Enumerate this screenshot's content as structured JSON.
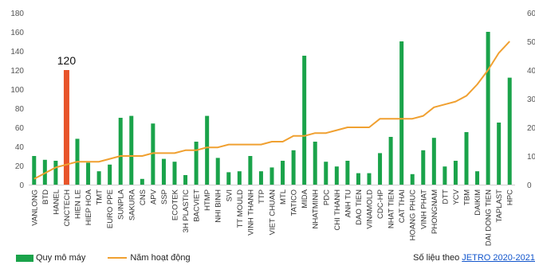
{
  "chart_data": {
    "type": "bar",
    "categories": [
      "VANLONG",
      "BTD",
      "HANEL",
      "CNCTECH",
      "HIEN LE",
      "HIEP HOA",
      "TMT",
      "EURO PPE",
      "SUNPLA",
      "SAKURA",
      "CNS",
      "APV",
      "SSP",
      "ECOTEK",
      "3H PLASTIC",
      "BACVIET",
      "HTMP",
      "NHI BINH",
      "SVI",
      "TT MOULD",
      "VINH THANH",
      "TTP",
      "VIET CHUAN",
      "MTL",
      "TATICO",
      "MIDA",
      "NHATMINH",
      "PDC",
      "CHI THANH",
      "ANH TU",
      "DAO TIEN",
      "VINAMOLD",
      "CDC-HP",
      "NHAT TIEN",
      "CAT THAI",
      "HOANG PHUC",
      "VINH PHAT",
      "PHONGNAM",
      "DTT",
      "YCV",
      "TBM",
      "DAIKIM",
      "DAI DONG TIEN",
      "TAPLAST",
      "HPC"
    ],
    "series": [
      {
        "name": "Quy mô máy",
        "type": "bar",
        "axis": "left",
        "color": "#1aa34a",
        "values": [
          30,
          26,
          25,
          120,
          48,
          23,
          14,
          21,
          70,
          72,
          6,
          64,
          27,
          24,
          10,
          45,
          72,
          28,
          13,
          14,
          30,
          14,
          18,
          25,
          36,
          135,
          45,
          24,
          19,
          25,
          12,
          12,
          33,
          50,
          150,
          11,
          36,
          49,
          19,
          25,
          55,
          14,
          160,
          65,
          112
        ]
      },
      {
        "name": "Năm hoạt động",
        "type": "line",
        "axis": "right",
        "color": "#f0a030",
        "values": [
          2,
          4,
          6,
          7,
          8,
          8,
          8,
          9,
          10,
          10,
          10,
          11,
          11,
          11,
          12,
          12,
          13,
          13,
          14,
          14,
          14,
          14,
          15,
          15,
          17,
          17,
          18,
          18,
          19,
          20,
          20,
          20,
          23,
          23,
          23,
          23,
          24,
          27,
          28,
          29,
          31,
          35,
          40,
          46,
          50
        ]
      }
    ],
    "highlight": {
      "category": "CNCTECH",
      "color": "#e8542a",
      "label": "120"
    },
    "ylim_left": [
      0,
      180
    ],
    "yticks_left": [
      0,
      20,
      40,
      60,
      80,
      100,
      120,
      140,
      160,
      180
    ],
    "ylim_right": [
      0,
      60
    ],
    "yticks_right": [
      0,
      10,
      20,
      30,
      40,
      50,
      60
    ],
    "yticks_right_labels": [
      "0",
      "10",
      "20",
      "30",
      "40",
      "50",
      "60"
    ],
    "grid": false,
    "legend_position": "bottom-left",
    "title": "",
    "xlabel": "",
    "ylabel": ""
  },
  "legend": {
    "bar_label": "Quy mô máy",
    "line_label": "Năm hoạt động"
  },
  "source": {
    "prefix": "Số liệu theo ",
    "link_text": "JETRO 2020-2021"
  }
}
